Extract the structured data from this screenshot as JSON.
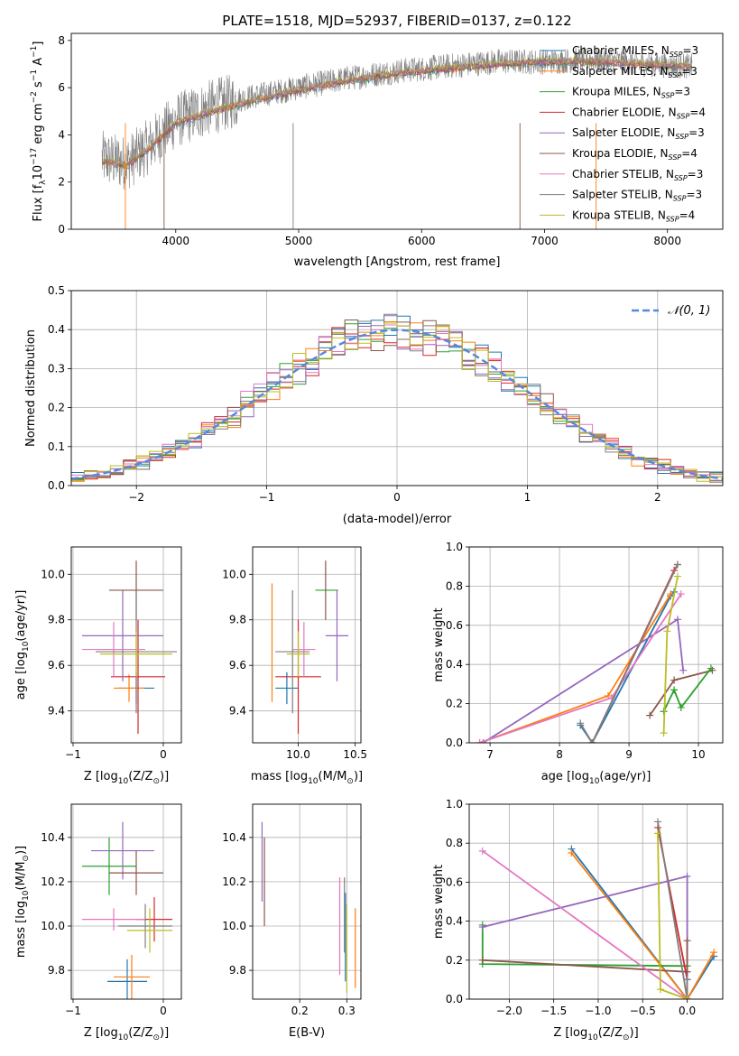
{
  "colors": {
    "axis": "#000000",
    "grid": "#b0b0b0",
    "data_spectrum": "#808080",
    "normal_curve": "#5588dd",
    "Chabrier MILES": "#1f77b4",
    "Salpeter MILES": "#ff7f0e",
    "Kroupa MILES": "#2ca02c",
    "Chabrier ELODIE": "#d62728",
    "Salpeter ELODIE": "#9467bd",
    "Kroupa ELODIE": "#8c564b",
    "Chabrier STELIB": "#e377c2",
    "Salpeter STELIB": "#7f7f7f",
    "Kroupa STELIB": "#bcbd22"
  },
  "chart_data": [
    {
      "id": "spectrum",
      "type": "line",
      "title": "PLATE=1518, MJD=52937, FIBERID=0137, z=0.122",
      "xlabel": "wavelength [Angstrom, rest frame]",
      "ylabel_parts": [
        "Flux [f",
        "λ",
        "10",
        "−17",
        " erg cm",
        "−2",
        " s",
        "−1",
        " A",
        "−1",
        "]"
      ],
      "xlim": [
        3150,
        8450
      ],
      "ylim": [
        0,
        8.3
      ],
      "xticks": [
        4000,
        5000,
        6000,
        7000,
        8000
      ],
      "yticks": [
        0,
        2,
        4,
        6,
        8
      ],
      "grid": false,
      "legend_position": "top-right",
      "legend": [
        {
          "label": "Chabrier MILES, N",
          "sub": "SSP",
          "tail": "=3",
          "color_key": "Chabrier MILES"
        },
        {
          "label": "Salpeter MILES, N",
          "sub": "SSP",
          "tail": "=3",
          "color_key": "Salpeter MILES"
        },
        {
          "label": "Kroupa MILES, N",
          "sub": "SSP",
          "tail": "=3",
          "color_key": "Kroupa MILES"
        },
        {
          "label": "Chabrier ELODIE, N",
          "sub": "SSP",
          "tail": "=4",
          "color_key": "Chabrier ELODIE"
        },
        {
          "label": "Salpeter ELODIE, N",
          "sub": "SSP",
          "tail": "=3",
          "color_key": "Salpeter ELODIE"
        },
        {
          "label": "Kroupa ELODIE, N",
          "sub": "SSP",
          "tail": "=4",
          "color_key": "Kroupa ELODIE"
        },
        {
          "label": "Chabrier STELIB, N",
          "sub": "SSP",
          "tail": "=3",
          "color_key": "Chabrier STELIB"
        },
        {
          "label": "Salpeter STELIB, N",
          "sub": "SSP",
          "tail": "=3",
          "color_key": "Salpeter STELIB"
        },
        {
          "label": "Kroupa STELIB, N",
          "sub": "SSP",
          "tail": "=4",
          "color_key": "Kroupa STELIB"
        }
      ],
      "data_continuum": {
        "x": [
          3400,
          3600,
          3800,
          4000,
          4300,
          4600,
          5000,
          5400,
          5800,
          6200,
          6600,
          7000,
          7400,
          7800,
          8200
        ],
        "y": [
          3.0,
          2.8,
          3.6,
          4.6,
          5.2,
          5.6,
          6.0,
          6.4,
          6.7,
          6.9,
          7.1,
          7.1,
          7.2,
          7.0,
          6.9
        ]
      },
      "model_continuum": {
        "x": [
          3400,
          3600,
          3800,
          4000,
          4300,
          4600,
          5000,
          5400,
          5800,
          6200,
          6600,
          7000,
          7400,
          7800,
          8200
        ],
        "y": [
          2.9,
          2.7,
          3.5,
          4.5,
          5.0,
          5.4,
          5.9,
          6.3,
          6.6,
          6.8,
          7.0,
          7.1,
          7.1,
          7.0,
          6.9
        ]
      }
    },
    {
      "id": "residuals",
      "type": "line",
      "xlabel": "(data-model)/error",
      "ylabel": "Normed distribution",
      "xlim": [
        -2.5,
        2.5
      ],
      "ylim": [
        0,
        0.5
      ],
      "xticks": [
        -2,
        -1,
        0,
        1,
        2
      ],
      "xtick_labels": [
        "−2",
        "−1",
        "0",
        "1",
        "2"
      ],
      "yticks": [
        0.0,
        0.1,
        0.2,
        0.3,
        0.4,
        0.5
      ],
      "ytick_labels": [
        "0.0",
        "0.1",
        "0.2",
        "0.3",
        "0.4",
        "0.5"
      ],
      "grid": true,
      "legend_position": "top-right",
      "legend_label": "𝒩(0, 1)",
      "normal_curve": {
        "mu": 0,
        "sigma": 1
      }
    },
    {
      "id": "age-vs-Z",
      "type": "scatter",
      "xlabel": "Z [log",
      "xlabel_sub": "10",
      "xlabel_tail": "(Z/Z",
      "xlabel_end": ")]",
      "ylabel": "age  [log",
      "ylabel_sub": "10",
      "ylabel_tail": "(age/yr)]",
      "xlim": [
        -1.02,
        0.2
      ],
      "ylim": [
        9.26,
        10.12
      ],
      "xticks": [
        -1,
        0
      ],
      "xtick_labels": [
        "−1",
        "0"
      ],
      "yticks": [
        9.4,
        9.6,
        9.8,
        10.0
      ],
      "ytick_labels": [
        "9.4",
        "9.6",
        "9.8",
        "10.0"
      ],
      "grid": true,
      "points": [
        {
          "m": "Chabrier MILES",
          "x": -0.3,
          "xerr": 0.2,
          "y": 9.5,
          "yerr": 0.07
        },
        {
          "m": "Salpeter MILES",
          "x": -0.38,
          "xerr": 0.17,
          "y": 9.5,
          "yerr": 0.06
        },
        {
          "m": "Kroupa MILES",
          "x": -0.9,
          "xerr": 0.0,
          "y": 9.93,
          "yerr": 0.0
        },
        {
          "m": "Chabrier ELODIE",
          "x": -0.28,
          "xerr": 0.3,
          "y": 9.55,
          "yerr": 0.25
        },
        {
          "m": "Salpeter ELODIE",
          "x": -0.45,
          "xerr": 0.45,
          "y": 9.73,
          "yerr": 0.2
        },
        {
          "m": "Kroupa ELODIE",
          "x": -0.3,
          "xerr": 0.3,
          "y": 9.93,
          "yerr": 0.13
        },
        {
          "m": "Chabrier STELIB",
          "x": -0.55,
          "xerr": 0.35,
          "y": 9.67,
          "yerr": 0.12
        },
        {
          "m": "Salpeter STELIB",
          "x": -0.3,
          "xerr": 0.45,
          "y": 9.66,
          "yerr": 0.27
        },
        {
          "m": "Kroupa STELIB",
          "x": -0.3,
          "xerr": 0.4,
          "y": 9.65,
          "yerr": 0.1
        }
      ]
    },
    {
      "id": "age-vs-mass",
      "type": "scatter",
      "xlabel": "mass [log",
      "xlabel_sub": "10",
      "xlabel_tail": "(M/M",
      "xlabel_end": ")]",
      "xlim": [
        9.6,
        10.55
      ],
      "ylim": [
        9.26,
        10.12
      ],
      "xticks": [
        10.0,
        10.5
      ],
      "xtick_labels": [
        "10.0",
        "10.5"
      ],
      "yticks": [
        9.4,
        9.6,
        9.8,
        10.0
      ],
      "ytick_labels": [
        "9.4",
        "9.6",
        "9.8",
        "10.0"
      ],
      "grid": true,
      "points": [
        {
          "m": "Chabrier MILES",
          "x": 9.9,
          "xerr": 0.1,
          "y": 9.5,
          "yerr": 0.07
        },
        {
          "m": "Salpeter MILES",
          "x": 9.77,
          "xerr": 0.0,
          "y": 9.7,
          "yerr": 0.26
        },
        {
          "m": "Kroupa MILES",
          "x": 10.25,
          "xerr": 0.1,
          "y": 9.93,
          "yerr": 0.0
        },
        {
          "m": "Chabrier ELODIE",
          "x": 10.0,
          "xerr": 0.2,
          "y": 9.55,
          "yerr": 0.25
        },
        {
          "m": "Salpeter ELODIE",
          "x": 10.34,
          "xerr": 0.1,
          "y": 9.73,
          "yerr": 0.2
        },
        {
          "m": "Kroupa ELODIE",
          "x": 10.24,
          "xerr": 0.0,
          "y": 9.93,
          "yerr": 0.13
        },
        {
          "m": "Chabrier STELIB",
          "x": 10.05,
          "xerr": 0.1,
          "y": 9.67,
          "yerr": 0.12
        },
        {
          "m": "Salpeter STELIB",
          "x": 9.95,
          "xerr": 0.15,
          "y": 9.66,
          "yerr": 0.27
        },
        {
          "m": "Kroupa STELIB",
          "x": 10.0,
          "xerr": 0.1,
          "y": 9.65,
          "yerr": 0.1
        }
      ]
    },
    {
      "id": "mass-weight-vs-age",
      "type": "line",
      "xlabel": "age  [log",
      "xlabel_sub": "10",
      "xlabel_tail": "(age/yr)]",
      "ylabel": "mass weight",
      "xlim": [
        6.7,
        10.35
      ],
      "ylim": [
        0,
        1.0
      ],
      "xticks": [
        7,
        8,
        9,
        10
      ],
      "xtick_labels": [
        "7",
        "8",
        "9",
        "10"
      ],
      "yticks": [
        0.0,
        0.2,
        0.4,
        0.6,
        0.8,
        1.0
      ],
      "ytick_labels": [
        "0.0",
        "0.2",
        "0.4",
        "0.6",
        "0.8",
        "1.0"
      ],
      "grid": true,
      "series": [
        {
          "m": "Chabrier MILES",
          "x": [
            8.3,
            8.47,
            9.6,
            9.65
          ],
          "y": [
            0.09,
            0.0,
            0.75,
            0.77
          ]
        },
        {
          "m": "Salpeter MILES",
          "x": [
            6.85,
            8.7,
            9.6
          ],
          "y": [
            0.0,
            0.24,
            0.76
          ]
        },
        {
          "m": "Chabrier ELODIE",
          "x": [
            8.47,
            9.65,
            9.7
          ],
          "y": [
            0.0,
            0.88,
            0.91
          ]
        },
        {
          "m": "Salpeter ELODIE",
          "x": [
            6.9,
            9.7,
            9.78
          ],
          "y": [
            0.0,
            0.63,
            0.37
          ]
        },
        {
          "m": "Kroupa ELODIE",
          "x": [
            9.3,
            9.65,
            10.2
          ],
          "y": [
            0.14,
            0.32,
            0.37
          ]
        },
        {
          "m": "Chabrier STELIB",
          "x": [
            6.85,
            8.75,
            9.75
          ],
          "y": [
            0.0,
            0.23,
            0.76
          ]
        },
        {
          "m": "Salpeter STELIB",
          "x": [
            8.3,
            8.47,
            9.7
          ],
          "y": [
            0.1,
            0.0,
            0.91
          ]
        },
        {
          "m": "Kroupa MILES",
          "x": [
            9.5,
            9.65,
            9.75,
            10.18
          ],
          "y": [
            0.16,
            0.27,
            0.18,
            0.38
          ]
        },
        {
          "m": "Kroupa STELIB",
          "x": [
            9.5,
            9.55,
            9.7
          ],
          "y": [
            0.05,
            0.57,
            0.85
          ]
        }
      ]
    },
    {
      "id": "mass-vs-Z",
      "type": "scatter",
      "xlabel": "Z [log",
      "xlabel_sub": "10",
      "xlabel_tail": "(Z/Z",
      "xlabel_end": ")]",
      "ylabel": "mass [log",
      "ylabel_sub": "10",
      "ylabel_tail": "(M/M",
      "ylabel_end": ")]",
      "xlim": [
        -1.02,
        0.2
      ],
      "ylim": [
        9.67,
        10.55
      ],
      "xticks": [
        -1,
        0
      ],
      "xtick_labels": [
        "−1",
        "0"
      ],
      "yticks": [
        9.8,
        10.0,
        10.2,
        10.4
      ],
      "ytick_labels": [
        "9.8",
        "10.0",
        "10.2",
        "10.4"
      ],
      "grid": true,
      "points": [
        {
          "m": "Chabrier MILES",
          "x": -0.4,
          "xerr": 0.22,
          "y": 9.75,
          "yerr": 0.1
        },
        {
          "m": "Salpeter MILES",
          "x": -0.35,
          "xerr": 0.2,
          "y": 9.77,
          "yerr": 0.1
        },
        {
          "m": "Kroupa MILES",
          "x": -0.6,
          "xerr": 0.3,
          "y": 10.27,
          "yerr": 0.13
        },
        {
          "m": "Chabrier ELODIE",
          "x": -0.1,
          "xerr": 0.2,
          "y": 10.03,
          "yerr": 0.1
        },
        {
          "m": "Salpeter ELODIE",
          "x": -0.45,
          "xerr": 0.35,
          "y": 10.34,
          "yerr": 0.13
        },
        {
          "m": "Kroupa ELODIE",
          "x": -0.3,
          "xerr": 0.3,
          "y": 10.24,
          "yerr": 0.1
        },
        {
          "m": "Chabrier STELIB",
          "x": -0.55,
          "xerr": 0.35,
          "y": 10.03,
          "yerr": 0.05
        },
        {
          "m": "Salpeter STELIB",
          "x": -0.2,
          "xerr": 0.3,
          "y": 10.0,
          "yerr": 0.1
        },
        {
          "m": "Kroupa STELIB",
          "x": -0.15,
          "xerr": 0.25,
          "y": 9.98,
          "yerr": 0.1
        }
      ]
    },
    {
      "id": "mass-vs-EBV",
      "type": "scatter",
      "xlabel": "E(B-V)",
      "xlim": [
        0.1,
        0.33
      ],
      "ylim": [
        9.67,
        10.55
      ],
      "xticks": [
        0.2,
        0.3
      ],
      "xtick_labels": [
        "0.2",
        "0.3"
      ],
      "yticks": [
        9.8,
        10.0,
        10.2,
        10.4
      ],
      "ytick_labels": [
        "9.8",
        "10.0",
        "10.2",
        "10.4"
      ],
      "grid": true,
      "points": [
        {
          "m": "Salpeter ELODIE",
          "x": 0.12,
          "xerr": 0.0,
          "y": 10.29,
          "yerr": 0.18
        },
        {
          "m": "Kroupa ELODIE",
          "x": 0.125,
          "xerr": 0.0,
          "y": 10.2,
          "yerr": 0.2
        },
        {
          "m": "Chabrier STELIB",
          "x": 0.285,
          "xerr": 0.0,
          "y": 10.0,
          "yerr": 0.22
        },
        {
          "m": "Salpeter STELIB",
          "x": 0.295,
          "xerr": 0.0,
          "y": 10.05,
          "yerr": 0.17
        },
        {
          "m": "Chabrier MILES",
          "x": 0.297,
          "xerr": 0.0,
          "y": 9.95,
          "yerr": 0.2
        },
        {
          "m": "Kroupa STELIB",
          "x": 0.3,
          "xerr": 0.0,
          "y": 9.9,
          "yerr": 0.2
        },
        {
          "m": "Salpeter MILES",
          "x": 0.318,
          "xerr": 0.0,
          "y": 9.9,
          "yerr": 0.18
        }
      ]
    },
    {
      "id": "mass-weight-vs-Z",
      "type": "line",
      "xlabel": "Z [log",
      "xlabel_sub": "10",
      "xlabel_tail": "(Z/Z",
      "xlabel_end": ")]",
      "ylabel": "mass weight",
      "xlim": [
        -2.45,
        0.4
      ],
      "ylim": [
        0,
        1.0
      ],
      "xticks": [
        -2.0,
        -1.5,
        -1.0,
        -0.5,
        0.0
      ],
      "xtick_labels": [
        "−2.0",
        "−1.5",
        "−1.0",
        "−0.5",
        "0.0"
      ],
      "yticks": [
        0.0,
        0.2,
        0.4,
        0.6,
        0.8,
        1.0
      ],
      "ytick_labels": [
        "0.0",
        "0.2",
        "0.4",
        "0.6",
        "0.8",
        "1.0"
      ],
      "grid": true,
      "series": [
        {
          "m": "Chabrier MILES",
          "x": [
            -1.3,
            0.0,
            0.3
          ],
          "y": [
            0.77,
            0.0,
            0.22
          ]
        },
        {
          "m": "Salpeter MILES",
          "x": [
            -1.3,
            0.0,
            0.3
          ],
          "y": [
            0.75,
            0.0,
            0.24
          ]
        },
        {
          "m": "Kroupa MILES",
          "x": [
            -2.3,
            -2.3,
            0.0
          ],
          "y": [
            0.38,
            0.18,
            0.17
          ]
        },
        {
          "m": "Chabrier ELODIE",
          "x": [
            -0.33,
            0.0,
            0.0
          ],
          "y": [
            0.88,
            0.1,
            0.0
          ]
        },
        {
          "m": "Salpeter ELODIE",
          "x": [
            -2.3,
            0.0,
            0.0
          ],
          "y": [
            0.37,
            0.63,
            0.1
          ]
        },
        {
          "m": "Kroupa ELODIE",
          "x": [
            -2.3,
            0.0,
            0.0
          ],
          "y": [
            0.2,
            0.14,
            0.3
          ]
        },
        {
          "m": "Chabrier STELIB",
          "x": [
            -2.3,
            0.0
          ],
          "y": [
            0.76,
            0.0
          ]
        },
        {
          "m": "Salpeter STELIB",
          "x": [
            -0.33,
            0.0,
            0.0
          ],
          "y": [
            0.91,
            0.0,
            0.1
          ]
        },
        {
          "m": "Kroupa STELIB",
          "x": [
            -0.33,
            -0.3,
            0.0
          ],
          "y": [
            0.85,
            0.05,
            0.0
          ]
        }
      ]
    }
  ]
}
